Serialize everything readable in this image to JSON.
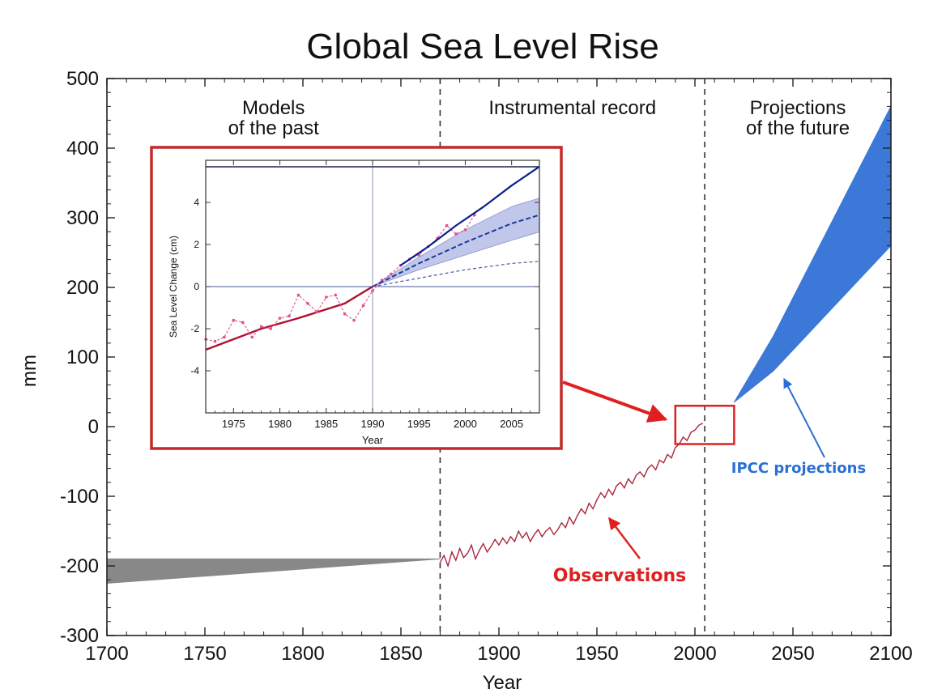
{
  "chart_data": [
    {
      "type": "line",
      "title": "Global Sea Level Rise",
      "xlabel": "Year",
      "ylabel": "mm",
      "xlim": [
        1700,
        2100
      ],
      "ylim": [
        -300,
        500
      ],
      "x_ticks": [
        1700,
        1750,
        1800,
        1850,
        1900,
        1950,
        2000,
        2050,
        2100
      ],
      "y_ticks": [
        500,
        400,
        300,
        200,
        100,
        0,
        -100,
        -200,
        -300
      ],
      "region_dividers": [
        1870,
        2005
      ],
      "regions": [
        {
          "label_line1": "Models",
          "label_line2": "of the past",
          "x": [
            1700,
            1870
          ]
        },
        {
          "label_line1": "Instrumental record",
          "label_line2": "",
          "x": [
            1870,
            2005
          ]
        },
        {
          "label_line1": "Projections",
          "label_line2": "of the future",
          "x": [
            2005,
            2100
          ]
        }
      ],
      "series": [
        {
          "role": "models_of_past_band",
          "color": "#888888",
          "x": [
            1700,
            1870
          ],
          "lower": [
            -225,
            -190
          ],
          "upper": [
            -190,
            -190
          ]
        },
        {
          "role": "observations",
          "color": "#a8283c",
          "x": [
            1870,
            1872,
            1874,
            1876,
            1878,
            1880,
            1882,
            1884,
            1886,
            1888,
            1890,
            1892,
            1894,
            1896,
            1898,
            1900,
            1902,
            1904,
            1906,
            1908,
            1910,
            1912,
            1914,
            1916,
            1918,
            1920,
            1922,
            1924,
            1926,
            1928,
            1930,
            1932,
            1934,
            1936,
            1938,
            1940,
            1942,
            1944,
            1946,
            1948,
            1950,
            1952,
            1954,
            1956,
            1958,
            1960,
            1962,
            1964,
            1966,
            1968,
            1970,
            1972,
            1974,
            1976,
            1978,
            1980,
            1982,
            1984,
            1986,
            1988,
            1990,
            1992,
            1994,
            1996,
            1998,
            2000,
            2002,
            2004
          ],
          "y": [
            -195,
            -185,
            -200,
            -180,
            -192,
            -175,
            -188,
            -182,
            -170,
            -190,
            -178,
            -168,
            -180,
            -172,
            -162,
            -170,
            -160,
            -168,
            -158,
            -165,
            -150,
            -160,
            -152,
            -165,
            -155,
            -148,
            -158,
            -150,
            -145,
            -155,
            -148,
            -138,
            -145,
            -130,
            -140,
            -128,
            -118,
            -125,
            -110,
            -118,
            -105,
            -95,
            -102,
            -90,
            -98,
            -85,
            -80,
            -88,
            -75,
            -82,
            -70,
            -65,
            -72,
            -60,
            -55,
            -62,
            -48,
            -52,
            -40,
            -45,
            -30,
            -25,
            -15,
            -20,
            -8,
            -5,
            2,
            5
          ]
        },
        {
          "role": "ipcc_projection_band",
          "name": "IPCC projections",
          "color": "#3c78d8",
          "x": [
            2020,
            2040,
            2060,
            2080,
            2100
          ],
          "lower": [
            35,
            80,
            140,
            200,
            260
          ],
          "upper": [
            35,
            130,
            240,
            350,
            460
          ]
        }
      ],
      "annotations": [
        {
          "text": "Observations",
          "color": "#e02020",
          "points_to": [
            1985,
            -120
          ]
        },
        {
          "text": "IPCC projections",
          "color": "#2a6fd6",
          "points_to": [
            2040,
            80
          ]
        }
      ],
      "highlight_box": {
        "x": [
          1990,
          2020
        ],
        "y": [
          -25,
          30
        ],
        "color": "#e02020"
      }
    },
    {
      "type": "line",
      "xlabel": "Year",
      "ylabel": "Sea Level Change (cm)",
      "xlim": [
        1972,
        2008
      ],
      "ylim": [
        -6,
        6
      ],
      "x_ticks": [
        1975,
        1980,
        1985,
        1990,
        1995,
        2000,
        2005
      ],
      "y_ticks": [
        4,
        2,
        0,
        -2,
        -4
      ],
      "reference_year": 1990,
      "series": [
        {
          "role": "smoothed_observations",
          "color": "#b01030",
          "x": [
            1972,
            1978,
            1982,
            1987,
            1990
          ],
          "y": [
            -3.0,
            -2.0,
            -1.5,
            -0.8,
            0.0
          ]
        },
        {
          "role": "annual_observations",
          "color": "#e0508c",
          "x": [
            1972,
            1973,
            1974,
            1975,
            1976,
            1977,
            1978,
            1979,
            1980,
            1981,
            1982,
            1983,
            1984,
            1985,
            1986,
            1987,
            1988,
            1989,
            1990,
            1991,
            1992,
            1993,
            1994,
            1995,
            1996,
            1997,
            1998,
            1999,
            2000,
            2001
          ],
          "y": [
            -2.5,
            -2.6,
            -2.4,
            -1.6,
            -1.7,
            -2.4,
            -1.9,
            -2.0,
            -1.5,
            -1.4,
            -0.4,
            -0.8,
            -1.2,
            -0.5,
            -0.4,
            -1.3,
            -1.6,
            -0.9,
            -0.2,
            0.3,
            0.6,
            1.0,
            1.3,
            1.5,
            1.9,
            2.3,
            2.9,
            2.5,
            2.7,
            3.4
          ]
        },
        {
          "role": "satellite_observations",
          "color": "#0a1f8f",
          "x": [
            1993,
            1996,
            1999,
            2002,
            2005,
            2008
          ],
          "y": [
            1.0,
            1.9,
            2.9,
            3.8,
            4.8,
            5.7
          ]
        },
        {
          "role": "projection_central",
          "color": "#1a3a9a",
          "x": [
            1990,
            1995,
            2000,
            2005,
            2008
          ],
          "y": [
            0.0,
            1.1,
            2.1,
            3.0,
            3.4
          ]
        },
        {
          "role": "projection_band",
          "color": "#b6bde8",
          "x": [
            1990,
            1995,
            2000,
            2005,
            2008
          ],
          "lower": [
            0.0,
            0.8,
            1.5,
            2.2,
            2.6
          ],
          "upper": [
            0.0,
            1.4,
            2.7,
            3.8,
            4.2
          ]
        },
        {
          "role": "projection_low",
          "color": "#5058a8",
          "x": [
            1990,
            1995,
            2000,
            2005,
            2008
          ],
          "y": [
            0.0,
            0.4,
            0.8,
            1.1,
            1.2
          ]
        }
      ]
    }
  ]
}
